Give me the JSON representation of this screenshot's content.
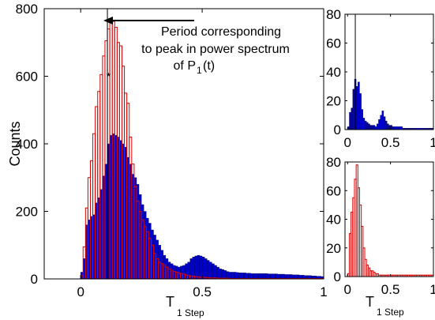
{
  "chart_data": [
    {
      "type": "histogram",
      "panel": "main",
      "xlabel": {
        "main": "T",
        "sub": "1 Step"
      },
      "ylabel": "Counts",
      "xlim": [
        -0.15,
        1.0
      ],
      "ylim": [
        0,
        800
      ],
      "x_ticks": [
        0,
        0.5,
        1
      ],
      "x_tick_labels": [
        "0",
        "0.5",
        "1"
      ],
      "y_ticks": [
        0,
        200,
        400,
        600,
        800
      ],
      "y_tick_labels": [
        "0",
        "200",
        "400",
        "600",
        "800"
      ],
      "bin_start": 0.0,
      "bin_width": 0.01,
      "reference_line_x": 0.11,
      "marker": {
        "x": 0.115,
        "y": 600
      },
      "annotation": {
        "line1": "Period corresponding",
        "line2": "to peak in power spectrum",
        "line3_main": "of P",
        "line3_sub": "1",
        "line3_tail": "(t)"
      },
      "series": [
        {
          "name": "",
          "style": "filled",
          "color": "#0000cc",
          "values": [
            20,
            60,
            160,
            175,
            185,
            190,
            225,
            240,
            265,
            305,
            340,
            400,
            425,
            430,
            425,
            420,
            410,
            400,
            390,
            360,
            340,
            310,
            300,
            280,
            250,
            220,
            200,
            180,
            165,
            145,
            130,
            115,
            100,
            85,
            70,
            60,
            50,
            45,
            40,
            38,
            35,
            38,
            40,
            45,
            50,
            60,
            65,
            68,
            70,
            68,
            65,
            60,
            55,
            50,
            45,
            40,
            35,
            30,
            28,
            25,
            22,
            20,
            20,
            20,
            19,
            18,
            18,
            18,
            17,
            17,
            16,
            16,
            16,
            16,
            16,
            16,
            16,
            15,
            15,
            15,
            15,
            14,
            14,
            14,
            13,
            13,
            13,
            12,
            12,
            12,
            11,
            11,
            10,
            10,
            10,
            9,
            9,
            8,
            8,
            7
          ]
        },
        {
          "name": "",
          "style": "outline",
          "color": "#dd0000",
          "values": [
            10,
            95,
            210,
            300,
            350,
            430,
            510,
            555,
            605,
            660,
            705,
            740,
            760,
            762,
            745,
            700,
            690,
            630,
            550,
            520,
            420,
            340,
            275,
            230,
            200,
            175,
            155,
            140,
            120,
            100,
            75,
            60,
            50,
            45,
            40,
            35,
            30,
            26,
            22,
            20,
            18,
            16,
            14,
            12,
            10,
            9,
            8,
            7,
            6,
            5,
            5,
            4,
            4,
            3,
            3,
            3,
            2,
            2,
            2,
            2,
            2,
            1,
            1,
            1,
            1,
            1,
            1,
            1,
            1,
            1,
            1,
            1,
            1,
            1,
            1,
            1,
            1,
            1,
            1,
            1,
            1,
            1,
            1,
            1,
            1,
            1,
            1,
            1,
            1,
            1,
            1,
            1,
            1,
            1,
            1,
            1,
            1,
            1,
            1,
            1
          ]
        }
      ]
    },
    {
      "type": "histogram",
      "panel": "top-right",
      "xlim": [
        -0.03,
        1.0
      ],
      "ylim": [
        0,
        80
      ],
      "x_ticks": [
        0,
        0.5,
        1
      ],
      "x_tick_labels": [
        "0",
        "0.5",
        "1"
      ],
      "y_ticks": [
        0,
        20,
        40,
        60,
        80
      ],
      "y_tick_labels": [
        "0",
        "20",
        "40",
        "60",
        "80"
      ],
      "bin_start": 0.0,
      "bin_width": 0.02,
      "reference_line_x": 0.09,
      "series": [
        {
          "name": "",
          "style": "filled",
          "color": "#0000cc",
          "values": [
            2,
            12,
            15,
            28,
            35,
            30,
            33,
            25,
            14,
            8,
            6,
            5,
            4,
            3,
            3,
            3,
            2,
            4,
            7,
            10,
            13,
            9,
            6,
            4,
            3,
            3,
            2,
            2,
            2,
            2,
            2,
            2,
            1,
            1,
            1,
            1,
            1,
            1,
            1,
            1,
            1,
            1,
            1,
            1,
            1,
            1,
            1,
            1,
            1,
            1
          ]
        }
      ]
    },
    {
      "type": "histogram",
      "panel": "bottom-right",
      "xlabel": {
        "main": "T",
        "sub": "1 Step"
      },
      "xlim": [
        -0.03,
        1.0
      ],
      "ylim": [
        0,
        80
      ],
      "x_ticks": [
        0,
        0.5,
        1
      ],
      "x_tick_labels": [
        "0",
        "0.5",
        "1"
      ],
      "y_ticks": [
        0,
        20,
        40,
        60,
        80
      ],
      "y_tick_labels": [
        "0",
        "20",
        "40",
        "60",
        "80"
      ],
      "bin_start": 0.0,
      "bin_width": 0.02,
      "series": [
        {
          "name": "",
          "style": "outline",
          "color": "#dd0000",
          "values": [
            2,
            30,
            45,
            55,
            68,
            78,
            62,
            50,
            35,
            20,
            12,
            8,
            6,
            4,
            4,
            3,
            2,
            2,
            1,
            1,
            1,
            1,
            1,
            1,
            1,
            1,
            1,
            1,
            1,
            1,
            1,
            1,
            1,
            1,
            1,
            1,
            1,
            1,
            1,
            1,
            1,
            1,
            1,
            1,
            1,
            1,
            1,
            1,
            1,
            1
          ]
        }
      ]
    }
  ]
}
